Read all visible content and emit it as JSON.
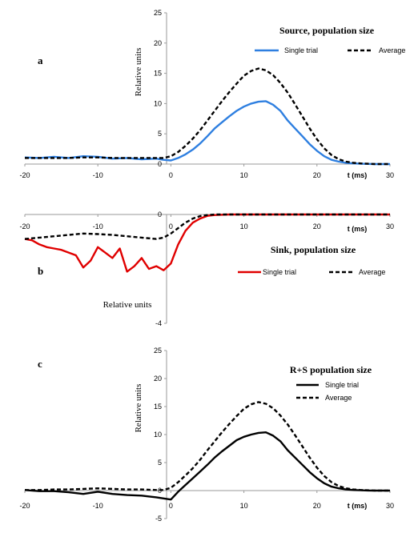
{
  "chart_data": [
    {
      "type": "line",
      "panel_label": "a",
      "title": "Source, population  size",
      "ylabel": "Relative  units",
      "xlabel": "t (ms)",
      "xlim": [
        -20,
        30
      ],
      "ylim": [
        0,
        25
      ],
      "x_ticks": [
        -20,
        -10,
        0,
        10,
        20,
        30
      ],
      "y_ticks": [
        0,
        5,
        10,
        15,
        20,
        25
      ],
      "legend_position": "top-right",
      "series": [
        {
          "name": "Single trial",
          "color": "#2e7fe0",
          "style": "solid",
          "x": [
            -20,
            -18,
            -16,
            -14,
            -12,
            -10,
            -8,
            -6,
            -4,
            -2,
            -1,
            0,
            1,
            2,
            3,
            4,
            5,
            6,
            7,
            8,
            9,
            10,
            11,
            12,
            13,
            14,
            15,
            16,
            17,
            18,
            19,
            20,
            21,
            22,
            23,
            24,
            25,
            26,
            27,
            28,
            29,
            30
          ],
          "y": [
            1.1,
            1.0,
            1.2,
            1.0,
            1.3,
            1.2,
            0.9,
            1.0,
            0.8,
            0.9,
            0.7,
            0.6,
            1.0,
            1.6,
            2.4,
            3.4,
            4.6,
            5.9,
            6.9,
            7.9,
            8.8,
            9.5,
            10.0,
            10.3,
            10.4,
            9.8,
            8.8,
            7.2,
            5.9,
            4.6,
            3.3,
            2.2,
            1.3,
            0.7,
            0.4,
            0.2,
            0.1,
            0.05,
            0.02,
            0.0,
            0.0,
            0.0
          ]
        },
        {
          "name": "Average",
          "color": "#000000",
          "style": "dashed",
          "x": [
            -20,
            -18,
            -16,
            -14,
            -12,
            -10,
            -8,
            -6,
            -4,
            -2,
            -1,
            0,
            1,
            2,
            3,
            4,
            5,
            6,
            7,
            8,
            9,
            10,
            11,
            12,
            13,
            14,
            15,
            16,
            17,
            18,
            19,
            20,
            21,
            22,
            23,
            24,
            25,
            26,
            27,
            28,
            29,
            30
          ],
          "y": [
            1.0,
            1.0,
            1.0,
            1.0,
            1.1,
            1.1,
            1.0,
            1.0,
            1.0,
            1.0,
            1.0,
            1.3,
            2.0,
            3.0,
            4.2,
            5.6,
            7.2,
            8.8,
            10.4,
            11.9,
            13.3,
            14.6,
            15.4,
            15.8,
            15.5,
            14.7,
            13.4,
            11.8,
            9.9,
            7.9,
            5.9,
            4.1,
            2.6,
            1.5,
            0.8,
            0.4,
            0.2,
            0.1,
            0.05,
            0.0,
            0.0,
            0.0
          ]
        }
      ]
    },
    {
      "type": "line",
      "panel_label": "b",
      "title": "Sink, population  size",
      "ylabel": "Relative  units",
      "xlabel": "t (ms)",
      "xlim": [
        -20,
        30
      ],
      "ylim": [
        -4,
        0
      ],
      "x_ticks": [
        -20,
        -10,
        0,
        10,
        20,
        30
      ],
      "y_ticks": [
        0,
        -4
      ],
      "legend_position": "center-right",
      "series": [
        {
          "name": "Single trial",
          "color": "#e00000",
          "style": "solid",
          "x": [
            -20,
            -19,
            -18,
            -17,
            -16,
            -15,
            -14,
            -13,
            -12,
            -11,
            -10,
            -9,
            -8,
            -7,
            -6,
            -5,
            -4,
            -3,
            -2,
            -1,
            0,
            1,
            2,
            3,
            4,
            5,
            6,
            8,
            10,
            15,
            20,
            25,
            30
          ],
          "y": [
            -0.9,
            -0.95,
            -1.1,
            -1.2,
            -1.25,
            -1.3,
            -1.4,
            -1.5,
            -1.95,
            -1.7,
            -1.2,
            -1.4,
            -1.6,
            -1.25,
            -2.1,
            -1.9,
            -1.6,
            -2.0,
            -1.9,
            -2.05,
            -1.8,
            -1.1,
            -0.6,
            -0.3,
            -0.15,
            -0.05,
            -0.02,
            0.0,
            0.0,
            0.0,
            0.0,
            0.0,
            0.0
          ]
        },
        {
          "name": "Average",
          "color": "#000000",
          "style": "dashed",
          "x": [
            -20,
            -18,
            -16,
            -14,
            -12,
            -10,
            -8,
            -6,
            -4,
            -2,
            -1,
            0,
            1,
            2,
            3,
            4,
            5,
            6,
            8,
            10,
            15,
            20,
            25,
            30
          ],
          "y": [
            -0.9,
            -0.85,
            -0.8,
            -0.75,
            -0.7,
            -0.72,
            -0.75,
            -0.8,
            -0.85,
            -0.9,
            -0.85,
            -0.7,
            -0.5,
            -0.3,
            -0.15,
            -0.06,
            -0.02,
            0.0,
            0.0,
            0.0,
            0.0,
            0.0,
            0.0,
            0.0
          ]
        }
      ]
    },
    {
      "type": "line",
      "panel_label": "c",
      "title": "R+S population  size",
      "ylabel": "Relative  units",
      "xlabel": "t (ms)",
      "xlim": [
        -20,
        30
      ],
      "ylim": [
        -5,
        25
      ],
      "x_ticks": [
        -20,
        -10,
        0,
        10,
        20,
        30
      ],
      "y_ticks": [
        -5,
        0,
        5,
        10,
        15,
        20,
        25
      ],
      "legend_position": "top-right",
      "series": [
        {
          "name": "Single trial",
          "color": "#000000",
          "style": "solid",
          "x": [
            -20,
            -18,
            -16,
            -14,
            -12,
            -10,
            -8,
            -6,
            -4,
            -2,
            -1,
            0,
            1,
            2,
            3,
            4,
            5,
            6,
            7,
            8,
            9,
            10,
            11,
            12,
            13,
            14,
            15,
            16,
            17,
            18,
            19,
            20,
            21,
            22,
            23,
            24,
            25,
            26,
            27,
            28,
            29,
            30
          ],
          "y": [
            0.1,
            -0.1,
            -0.1,
            -0.3,
            -0.6,
            -0.2,
            -0.6,
            -0.8,
            -0.9,
            -1.2,
            -1.4,
            -1.6,
            -0.2,
            1.0,
            2.2,
            3.4,
            4.6,
            5.9,
            7.0,
            8.0,
            9.0,
            9.6,
            10.0,
            10.3,
            10.4,
            9.8,
            8.8,
            7.2,
            5.9,
            4.6,
            3.3,
            2.2,
            1.3,
            0.7,
            0.4,
            0.2,
            0.1,
            0.05,
            0.02,
            0.0,
            0.0,
            0.0
          ]
        },
        {
          "name": "Average",
          "color": "#000000",
          "style": "dashed",
          "x": [
            -20,
            -18,
            -16,
            -14,
            -12,
            -10,
            -8,
            -6,
            -4,
            -2,
            -1,
            0,
            1,
            2,
            3,
            4,
            5,
            6,
            7,
            8,
            9,
            10,
            11,
            12,
            13,
            14,
            15,
            16,
            17,
            18,
            19,
            20,
            21,
            22,
            23,
            24,
            25,
            26,
            27,
            28,
            29,
            30
          ],
          "y": [
            0.1,
            0.1,
            0.2,
            0.2,
            0.3,
            0.4,
            0.3,
            0.2,
            0.2,
            0.1,
            0.1,
            0.5,
            1.5,
            2.7,
            4.0,
            5.5,
            7.2,
            8.8,
            10.4,
            11.9,
            13.3,
            14.6,
            15.4,
            15.8,
            15.5,
            14.7,
            13.4,
            11.8,
            9.9,
            7.9,
            5.9,
            4.1,
            2.6,
            1.5,
            0.8,
            0.4,
            0.2,
            0.1,
            0.05,
            0.0,
            0.0,
            0.0
          ]
        }
      ]
    }
  ]
}
